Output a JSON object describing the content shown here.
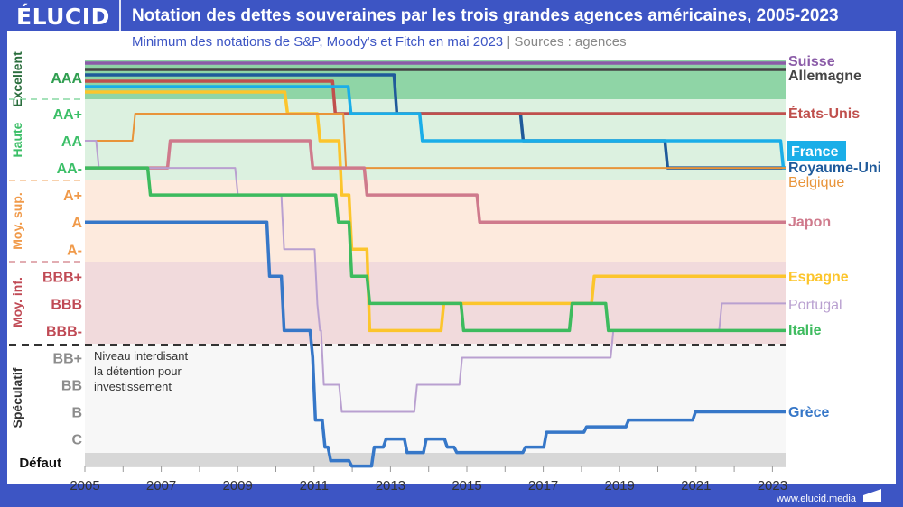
{
  "header": {
    "logo": "ÉLUCID",
    "title": "Notation des dettes souveraines par les trois grandes agences américaines, 2005-2023",
    "subtitle": "Minimum des notations de S&P, Moody's et Fitch en mai 2023",
    "separator": "|",
    "sources": "Sources : agences"
  },
  "footer": {
    "url": "www.elucid.media"
  },
  "colors": {
    "brand": "#3d55c4",
    "background_band": "#3d55c4"
  },
  "chart_data": {
    "type": "line",
    "step": true,
    "xlim": [
      2005,
      2023.4
    ],
    "x_ticks": [
      "2005",
      "2007",
      "2009",
      "2011",
      "2013",
      "2015",
      "2017",
      "2019",
      "2021",
      "2023"
    ],
    "y_scale": "rating notches (0 = AAA … 14 = Défaut), top to bottom",
    "y_ticks": [
      {
        "label": "AAA",
        "level": 0,
        "color": "#2f9e50"
      },
      {
        "label": "AA+",
        "level": 1,
        "color": "#3cbf68"
      },
      {
        "label": "AA",
        "level": 2,
        "color": "#3cbf68"
      },
      {
        "label": "AA-",
        "level": 3,
        "color": "#3cbf68"
      },
      {
        "label": "A+",
        "level": 4,
        "color": "#f09a4a"
      },
      {
        "label": "A",
        "level": 5,
        "color": "#f09a4a"
      },
      {
        "label": "A-",
        "level": 6,
        "color": "#f09a4a"
      },
      {
        "label": "BBB+",
        "level": 7,
        "color": "#c04a55"
      },
      {
        "label": "BBB",
        "level": 8,
        "color": "#c04a55"
      },
      {
        "label": "BBB-",
        "level": 9,
        "color": "#c04a55"
      },
      {
        "label": "BB+",
        "level": 10,
        "color": "#8c8c8c"
      },
      {
        "label": "BB",
        "level": 11,
        "color": "#8c8c8c"
      },
      {
        "label": "B",
        "level": 12,
        "color": "#8c8c8c"
      },
      {
        "label": "C",
        "level": 13,
        "color": "#8c8c8c"
      },
      {
        "label": "Défaut",
        "level": 14,
        "color": "#111111"
      }
    ],
    "categories": [
      {
        "label": "Excellent",
        "color": "#2b6e3e",
        "band": "#8fd5a6"
      },
      {
        "label": "Haute",
        "color": "#3cbf68",
        "band": "#dcf1e0"
      },
      {
        "label": "Moy. sup.",
        "color": "#f09a4a",
        "band": "#fdeadd"
      },
      {
        "label": "Moy. inf.",
        "color": "#c04a55",
        "band": "#f1dadc"
      },
      {
        "label": "Spéculatif",
        "color": "#333333",
        "band": "#f7f7f7"
      },
      {
        "label": "",
        "color": "#111111",
        "band": "#d7d7d7"
      }
    ],
    "threshold_annotation": [
      "Niveau interdisant",
      "la détention pour",
      "investissement"
    ],
    "series": [
      {
        "name": "Suisse",
        "color": "#8b5ca8",
        "points": [
          [
            2005,
            0
          ]
        ]
      },
      {
        "name": "Allemagne",
        "color": "#454545",
        "points": [
          [
            2005,
            0
          ]
        ]
      },
      {
        "name": "Royaume-Uni",
        "color": "#1f5a9a",
        "points": [
          [
            2005,
            0
          ],
          [
            2013.13,
            1
          ],
          [
            2016.44,
            2
          ],
          [
            2020.22,
            3
          ]
        ]
      },
      {
        "name": "États-Unis",
        "color": "#c0504d",
        "points": [
          [
            2005,
            0
          ],
          [
            2011.52,
            1
          ]
        ]
      },
      {
        "name": "France",
        "color": "#1aaee8",
        "points": [
          [
            2005,
            0
          ],
          [
            2011.93,
            1
          ],
          [
            2013.8,
            2
          ],
          [
            2023.25,
            3
          ]
        ]
      },
      {
        "name": "Espagne",
        "color": "#fcc52c",
        "points": [
          [
            2005,
            0
          ],
          [
            2010.27,
            1
          ],
          [
            2011.12,
            2
          ],
          [
            2011.69,
            4
          ],
          [
            2011.95,
            6
          ],
          [
            2012.42,
            9
          ],
          [
            2014.36,
            8
          ],
          [
            2018.3,
            7
          ]
        ]
      },
      {
        "name": "Belgique",
        "color": "#e8943a",
        "points": [
          [
            2005,
            2
          ],
          [
            2006.28,
            1
          ],
          [
            2011.8,
            3
          ]
        ]
      },
      {
        "name": "Japon",
        "color": "#cf7a8c",
        "points": [
          [
            2005,
            3
          ],
          [
            2007.2,
            2
          ],
          [
            2010.93,
            3
          ],
          [
            2012.35,
            4
          ],
          [
            2015.3,
            5
          ]
        ]
      },
      {
        "name": "Portugal",
        "color": "#b9a0d0",
        "points": [
          [
            2005,
            2
          ],
          [
            2005.33,
            3
          ],
          [
            2008.97,
            4
          ],
          [
            2010.18,
            6
          ],
          [
            2011.05,
            8
          ],
          [
            2011.12,
            9
          ],
          [
            2011.22,
            11
          ],
          [
            2011.69,
            12
          ],
          [
            2013.66,
            11
          ],
          [
            2014.84,
            10
          ],
          [
            2018.8,
            9
          ],
          [
            2021.64,
            8
          ]
        ]
      },
      {
        "name": "Italie",
        "color": "#3dbb5e",
        "points": [
          [
            2005,
            3
          ],
          [
            2006.68,
            4
          ],
          [
            2011.6,
            5
          ],
          [
            2011.95,
            7
          ],
          [
            2012.42,
            8
          ],
          [
            2014.88,
            9
          ],
          [
            2017.72,
            8
          ],
          [
            2018.67,
            9
          ]
        ]
      },
      {
        "name": "Grèce",
        "color": "#3677c8",
        "points": [
          [
            2005,
            5
          ],
          [
            2009.8,
            7
          ],
          [
            2010.18,
            9
          ],
          [
            2010.93,
            10
          ],
          [
            2011.0,
            12.3
          ],
          [
            2011.25,
            13.3
          ],
          [
            2011.4,
            13.8
          ],
          [
            2011.95,
            14
          ],
          [
            2012.54,
            13.3
          ],
          [
            2012.85,
            13
          ],
          [
            2013.4,
            13.5
          ],
          [
            2013.9,
            13
          ],
          [
            2014.45,
            13.3
          ],
          [
            2014.7,
            13.5
          ],
          [
            2016.5,
            13.3
          ],
          [
            2017.05,
            12.75
          ],
          [
            2018.1,
            12.55
          ],
          [
            2019.2,
            12.3
          ],
          [
            2020.95,
            12
          ]
        ]
      }
    ]
  }
}
